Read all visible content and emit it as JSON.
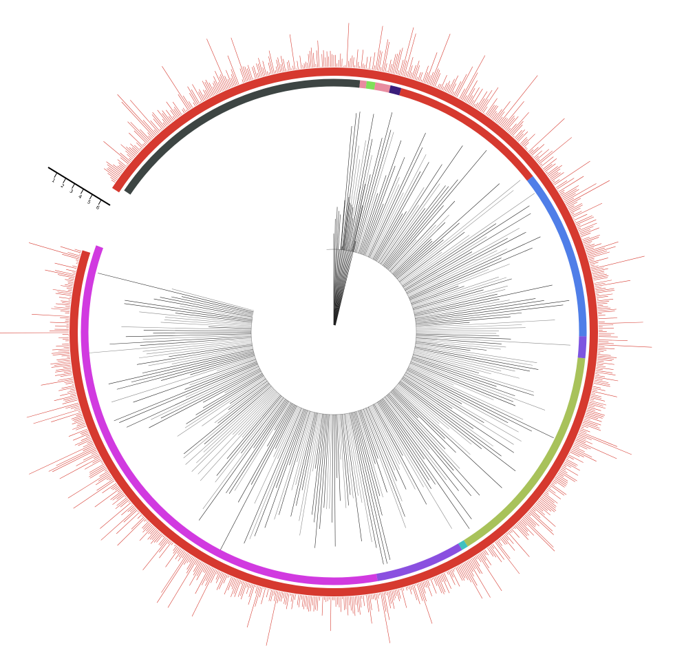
{
  "scale_bar": {
    "labels": [
      "1",
      "2",
      "3",
      "4",
      "5",
      "6"
    ]
  }
}
